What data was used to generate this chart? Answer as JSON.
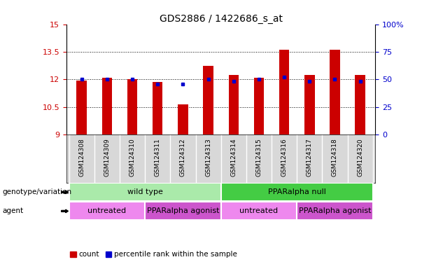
{
  "title": "GDS2886 / 1422686_s_at",
  "samples": [
    "GSM124308",
    "GSM124309",
    "GSM124310",
    "GSM124311",
    "GSM124312",
    "GSM124313",
    "GSM124314",
    "GSM124315",
    "GSM124316",
    "GSM124317",
    "GSM124318",
    "GSM124320"
  ],
  "count_values": [
    11.95,
    12.1,
    12.0,
    11.85,
    10.65,
    12.75,
    12.25,
    12.1,
    13.6,
    12.25,
    13.6,
    12.25
  ],
  "percentile_values": [
    50,
    50,
    50,
    46,
    46,
    50,
    48,
    50,
    52,
    48,
    50,
    48
  ],
  "ylim_left": [
    9,
    15
  ],
  "ylim_right": [
    0,
    100
  ],
  "yticks_left": [
    9,
    10.5,
    12,
    13.5,
    15
  ],
  "ytick_labels_left": [
    "9",
    "10.5",
    "12",
    "13.5",
    "15"
  ],
  "yticks_right": [
    0,
    25,
    50,
    75,
    100
  ],
  "ytick_labels_right": [
    "0",
    "25",
    "50",
    "75",
    "100%"
  ],
  "bar_color": "#cc0000",
  "dot_color": "#0000cc",
  "bar_bottom": 9,
  "grid_lines": [
    10.5,
    12,
    13.5
  ],
  "genotype_groups": [
    {
      "label": "wild type",
      "start": 0,
      "end": 6,
      "color": "#aaeaaa"
    },
    {
      "label": "PPARalpha null",
      "start": 6,
      "end": 12,
      "color": "#44cc44"
    }
  ],
  "agent_groups": [
    {
      "label": "untreated",
      "start": 0,
      "end": 3,
      "color": "#ee88ee"
    },
    {
      "label": "PPARalpha agonist",
      "start": 3,
      "end": 6,
      "color": "#cc55cc"
    },
    {
      "label": "untreated",
      "start": 6,
      "end": 9,
      "color": "#ee88ee"
    },
    {
      "label": "PPARalpha agonist",
      "start": 9,
      "end": 12,
      "color": "#cc55cc"
    }
  ],
  "tick_label_color_left": "#cc0000",
  "tick_label_color_right": "#0000cc",
  "legend_count": "count",
  "legend_percentile": "percentile rank within the sample",
  "genotype_label": "genotype/variation",
  "agent_label": "agent",
  "background_color": "#ffffff",
  "xticklabel_bg": "#d8d8d8",
  "bar_width": 0.4
}
